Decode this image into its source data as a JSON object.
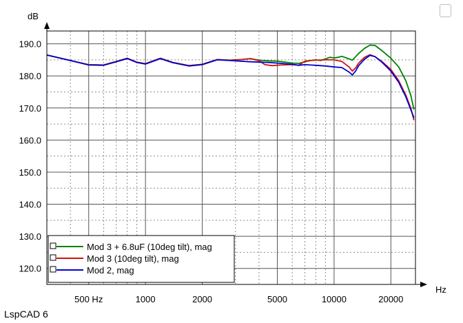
{
  "app": {
    "footer": "LspCAD 6"
  },
  "chart_data": {
    "type": "line",
    "xlabel": "Hz",
    "ylabel": "dB",
    "xscale": "log",
    "xlim": [
      300,
      27000
    ],
    "ylim": [
      115,
      194
    ],
    "grid": true,
    "x_ticks": [
      {
        "value": 500,
        "label": "500 Hz"
      },
      {
        "value": 1000,
        "label": "1000"
      },
      {
        "value": 2000,
        "label": "2000"
      },
      {
        "value": 5000,
        "label": "5000"
      },
      {
        "value": 10000,
        "label": "10000"
      },
      {
        "value": 20000,
        "label": "20000"
      }
    ],
    "y_ticks": [
      {
        "value": 190,
        "label": "190.0"
      },
      {
        "value": 180,
        "label": "180.0"
      },
      {
        "value": 170,
        "label": "170.0"
      },
      {
        "value": 160,
        "label": "160.0"
      },
      {
        "value": 150,
        "label": "150.0"
      },
      {
        "value": 140,
        "label": "140.0"
      },
      {
        "value": 130,
        "label": "130.0"
      },
      {
        "value": 120,
        "label": "120.0"
      }
    ],
    "legend_position": "bottom-left",
    "series": [
      {
        "name": "Mod 3 + 6.8uF (10deg tilt), mag",
        "color": "#008000",
        "points": [
          [
            300,
            186.5
          ],
          [
            400,
            184.8
          ],
          [
            500,
            183.5
          ],
          [
            600,
            183.4
          ],
          [
            700,
            184.5
          ],
          [
            800,
            185.5
          ],
          [
            900,
            184.3
          ],
          [
            1000,
            183.8
          ],
          [
            1200,
            185.5
          ],
          [
            1400,
            184.2
          ],
          [
            1700,
            183.2
          ],
          [
            2000,
            183.6
          ],
          [
            2400,
            185.1
          ],
          [
            2800,
            184.9
          ],
          [
            3200,
            185.1
          ],
          [
            3600,
            185.4
          ],
          [
            4000,
            184.9
          ],
          [
            4500,
            184.7
          ],
          [
            5000,
            184.6
          ],
          [
            5500,
            184.3
          ],
          [
            6000,
            184.0
          ],
          [
            6500,
            183.9
          ],
          [
            7000,
            184.4
          ],
          [
            7500,
            184.8
          ],
          [
            8000,
            185.0
          ],
          [
            8500,
            184.8
          ],
          [
            9000,
            185.3
          ],
          [
            9500,
            185.8
          ],
          [
            10000,
            185.6
          ],
          [
            10500,
            185.8
          ],
          [
            11000,
            186.1
          ],
          [
            12000,
            185.3
          ],
          [
            12500,
            184.9
          ],
          [
            13000,
            186.0
          ],
          [
            13500,
            187.0
          ],
          [
            14500,
            188.6
          ],
          [
            15500,
            189.6
          ],
          [
            16500,
            189.5
          ],
          [
            18000,
            187.8
          ],
          [
            20000,
            185.5
          ],
          [
            22000,
            182.8
          ],
          [
            24000,
            178.5
          ],
          [
            25500,
            174.0
          ],
          [
            26500,
            169.5
          ]
        ]
      },
      {
        "name": "Mod 3 (10deg tilt), mag",
        "color": "#d01010",
        "points": [
          [
            300,
            186.5
          ],
          [
            400,
            184.8
          ],
          [
            500,
            183.5
          ],
          [
            600,
            183.4
          ],
          [
            700,
            184.5
          ],
          [
            800,
            185.5
          ],
          [
            900,
            184.3
          ],
          [
            1000,
            183.8
          ],
          [
            1200,
            185.5
          ],
          [
            1400,
            184.2
          ],
          [
            1700,
            183.2
          ],
          [
            2000,
            183.6
          ],
          [
            2400,
            185.1
          ],
          [
            2800,
            184.9
          ],
          [
            3200,
            185.1
          ],
          [
            3600,
            185.4
          ],
          [
            4000,
            184.7
          ],
          [
            4300,
            183.5
          ],
          [
            4700,
            183.2
          ],
          [
            5200,
            183.4
          ],
          [
            6000,
            183.5
          ],
          [
            6500,
            183.3
          ],
          [
            7000,
            184.6
          ],
          [
            7500,
            184.8
          ],
          [
            8000,
            184.9
          ],
          [
            9000,
            185.0
          ],
          [
            10000,
            185.0
          ],
          [
            11000,
            184.5
          ],
          [
            12000,
            182.8
          ],
          [
            12500,
            181.5
          ],
          [
            13000,
            182.5
          ],
          [
            13500,
            184.0
          ],
          [
            14500,
            185.8
          ],
          [
            15500,
            186.6
          ],
          [
            16500,
            186.0
          ],
          [
            18000,
            184.4
          ],
          [
            20000,
            182.0
          ],
          [
            22000,
            178.5
          ],
          [
            24000,
            174.0
          ],
          [
            25500,
            170.0
          ],
          [
            26500,
            166.2
          ]
        ]
      },
      {
        "name": "Mod 2, mag",
        "color": "#0000cc",
        "points": [
          [
            300,
            186.5
          ],
          [
            400,
            184.8
          ],
          [
            500,
            183.4
          ],
          [
            600,
            183.3
          ],
          [
            700,
            184.4
          ],
          [
            800,
            185.4
          ],
          [
            900,
            184.2
          ],
          [
            1000,
            183.7
          ],
          [
            1200,
            185.4
          ],
          [
            1400,
            184.1
          ],
          [
            1700,
            183.1
          ],
          [
            2000,
            183.5
          ],
          [
            2400,
            185.0
          ],
          [
            2800,
            184.8
          ],
          [
            3200,
            184.6
          ],
          [
            3600,
            184.4
          ],
          [
            4000,
            184.3
          ],
          [
            4500,
            184.2
          ],
          [
            5000,
            184.0
          ],
          [
            5500,
            183.8
          ],
          [
            6000,
            183.6
          ],
          [
            6500,
            183.3
          ],
          [
            7000,
            183.5
          ],
          [
            7500,
            183.4
          ],
          [
            8000,
            183.3
          ],
          [
            9000,
            183.1
          ],
          [
            10000,
            182.8
          ],
          [
            11000,
            182.6
          ],
          [
            12000,
            181.2
          ],
          [
            12500,
            180.3
          ],
          [
            13000,
            181.5
          ],
          [
            13500,
            183.2
          ],
          [
            14500,
            185.2
          ],
          [
            15500,
            186.4
          ],
          [
            16500,
            186.0
          ],
          [
            18000,
            184.2
          ],
          [
            20000,
            181.5
          ],
          [
            22000,
            178.0
          ],
          [
            24000,
            173.5
          ],
          [
            25500,
            169.5
          ],
          [
            26500,
            167.0
          ]
        ]
      }
    ]
  }
}
